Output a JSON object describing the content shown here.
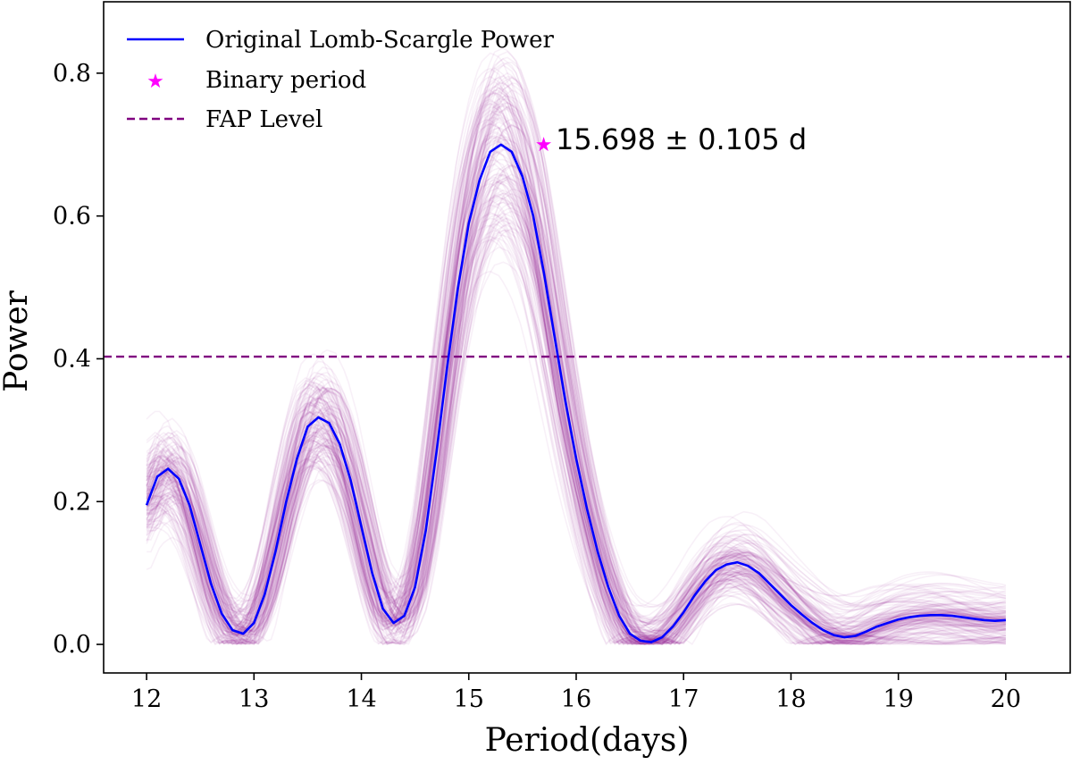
{
  "chart_data": {
    "type": "line",
    "title": "",
    "xlabel": "Period(days)",
    "ylabel": "Power",
    "xlim": [
      11.6,
      20.6
    ],
    "ylim": [
      -0.04,
      0.9
    ],
    "grid": false,
    "legend_position": "top-left",
    "xticks": [
      {
        "value": 12,
        "label": "12"
      },
      {
        "value": 13,
        "label": "13"
      },
      {
        "value": 14,
        "label": "14"
      },
      {
        "value": 15,
        "label": "15"
      },
      {
        "value": 16,
        "label": "16"
      },
      {
        "value": 17,
        "label": "17"
      },
      {
        "value": 18,
        "label": "18"
      },
      {
        "value": 19,
        "label": "19"
      },
      {
        "value": 20,
        "label": "20"
      }
    ],
    "yticks": [
      {
        "value": 0.0,
        "label": "0.0"
      },
      {
        "value": 0.2,
        "label": "0.2"
      },
      {
        "value": 0.4,
        "label": "0.4"
      },
      {
        "value": 0.6,
        "label": "0.6"
      },
      {
        "value": 0.8,
        "label": "0.8"
      }
    ],
    "series": [
      {
        "name": "Original Lomb-Scargle Power",
        "color": "#0000ff",
        "x": [
          12.0,
          12.1,
          12.2,
          12.3,
          12.4,
          12.5,
          12.6,
          12.7,
          12.8,
          12.9,
          13.0,
          13.1,
          13.2,
          13.3,
          13.4,
          13.5,
          13.6,
          13.7,
          13.8,
          13.9,
          14.0,
          14.1,
          14.2,
          14.3,
          14.4,
          14.5,
          14.6,
          14.7,
          14.8,
          14.9,
          15.0,
          15.1,
          15.2,
          15.3,
          15.4,
          15.5,
          15.6,
          15.7,
          15.8,
          15.9,
          16.0,
          16.1,
          16.2,
          16.3,
          16.4,
          16.5,
          16.6,
          16.7,
          16.8,
          16.9,
          17.0,
          17.1,
          17.2,
          17.3,
          17.4,
          17.5,
          17.6,
          17.7,
          17.8,
          17.9,
          18.0,
          18.1,
          18.2,
          18.3,
          18.4,
          18.5,
          18.6,
          18.7,
          18.8,
          18.9,
          19.0,
          19.1,
          19.2,
          19.3,
          19.4,
          19.5,
          19.6,
          19.7,
          19.8,
          19.9,
          20.0
        ],
        "y": [
          0.195,
          0.235,
          0.246,
          0.232,
          0.195,
          0.14,
          0.085,
          0.043,
          0.02,
          0.015,
          0.03,
          0.07,
          0.13,
          0.2,
          0.26,
          0.305,
          0.318,
          0.31,
          0.28,
          0.23,
          0.165,
          0.1,
          0.05,
          0.03,
          0.04,
          0.08,
          0.16,
          0.27,
          0.39,
          0.5,
          0.59,
          0.65,
          0.69,
          0.7,
          0.69,
          0.655,
          0.6,
          0.52,
          0.43,
          0.34,
          0.26,
          0.19,
          0.13,
          0.08,
          0.04,
          0.015,
          0.005,
          0.003,
          0.01,
          0.025,
          0.045,
          0.068,
          0.088,
          0.104,
          0.112,
          0.115,
          0.11,
          0.1,
          0.085,
          0.07,
          0.055,
          0.042,
          0.03,
          0.02,
          0.013,
          0.01,
          0.012,
          0.018,
          0.025,
          0.03,
          0.035,
          0.038,
          0.04,
          0.041,
          0.041,
          0.04,
          0.038,
          0.036,
          0.034,
          0.033,
          0.034
        ]
      },
      {
        "name": "Binary period",
        "type": "scatter",
        "marker": "star",
        "color": "#ff00ff",
        "x": [
          15.698
        ],
        "y": [
          0.701
        ]
      },
      {
        "name": "FAP Level",
        "type": "hline",
        "style": "dashed",
        "color": "#800080",
        "y": 0.403
      }
    ],
    "bootstrap_band": {
      "description": "faint purple resampled periodograms",
      "color": "#800080",
      "count": 150,
      "period_jitter": 0.12,
      "power_jitter": 0.18
    },
    "annotations": [
      {
        "text": "15.698 ± 0.105 d",
        "x": 15.698,
        "y": 0.701
      }
    ],
    "legend": [
      {
        "label": "Original Lomb-Scargle Power",
        "style": "line",
        "color": "#0000ff"
      },
      {
        "label": "Binary period",
        "style": "star",
        "color": "#ff00ff"
      },
      {
        "label": "FAP Level",
        "style": "dashed",
        "color": "#800080"
      }
    ]
  }
}
